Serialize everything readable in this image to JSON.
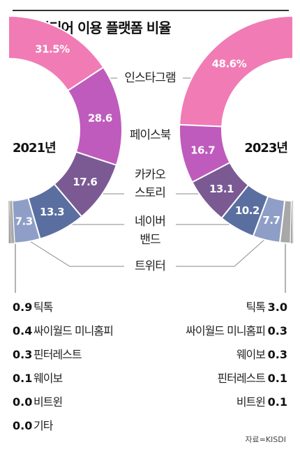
{
  "title": "소셜미디어 이용 플랫폼 비율",
  "source": "자료=KISDI",
  "chart_data": [
    {
      "type": "pie",
      "name": "2021년",
      "label": "2021년",
      "slices": [
        {
          "label": "인스타그램",
          "value": 31.5,
          "display": "31.5%",
          "color": "#f17bb4"
        },
        {
          "label": "페이스북",
          "value": 28.6,
          "display": "28.6",
          "color": "#bf5bbd"
        },
        {
          "label": "카카오 스토리",
          "value": 17.6,
          "display": "17.6",
          "color": "#7b5a94"
        },
        {
          "label": "네이버 밴드",
          "value": 13.3,
          "display": "13.3",
          "color": "#5a6fa0"
        },
        {
          "label": "트위터",
          "value": 7.3,
          "display": "7.3",
          "color": "#8f9ec6"
        },
        {
          "label": "틱톡",
          "value": 0.9,
          "display": "0.9",
          "color": "#a8a8a8"
        },
        {
          "label": "싸이월드 미니홈피",
          "value": 0.4,
          "display": "0.4",
          "color": "#8a8a8a"
        },
        {
          "label": "핀터레스트",
          "value": 0.3,
          "display": "0.3",
          "color": "#6e6e6e"
        },
        {
          "label": "웨이보",
          "value": 0.1,
          "display": "0.1",
          "color": "#555555"
        },
        {
          "label": "비트윈",
          "value": 0.0,
          "display": "0.0",
          "color": "#444444"
        },
        {
          "label": "기타",
          "value": 0.0,
          "display": "0.0",
          "color": "#333333"
        }
      ]
    },
    {
      "type": "pie",
      "name": "2023년",
      "label": "2023년",
      "slices": [
        {
          "label": "인스타그램",
          "value": 48.6,
          "display": "48.6%",
          "color": "#f17bb4"
        },
        {
          "label": "페이스북",
          "value": 16.7,
          "display": "16.7",
          "color": "#bf5bbd"
        },
        {
          "label": "카카오 스토리",
          "value": 13.1,
          "display": "13.1",
          "color": "#7b5a94"
        },
        {
          "label": "네이버 밴드",
          "value": 10.2,
          "display": "10.2",
          "color": "#5a6fa0"
        },
        {
          "label": "트위터",
          "value": 7.7,
          "display": "7.7",
          "color": "#8f9ec6"
        },
        {
          "label": "틱톡",
          "value": 3.0,
          "display": "3.0",
          "color": "#a8a8a8"
        },
        {
          "label": "싸이월드 미니홈피",
          "value": 0.3,
          "display": "0.3",
          "color": "#8a8a8a"
        },
        {
          "label": "웨이보",
          "value": 0.3,
          "display": "0.3",
          "color": "#6e6e6e"
        },
        {
          "label": "핀터레스트",
          "value": 0.1,
          "display": "0.1",
          "color": "#555555"
        },
        {
          "label": "비트윈",
          "value": 0.1,
          "display": "0.1",
          "color": "#444444"
        }
      ]
    }
  ],
  "center_labels": [
    {
      "text": "인스타그램"
    },
    {
      "text": "페이스북"
    },
    {
      "text": "카카오"
    },
    {
      "text": "스토리"
    },
    {
      "text": "네이버"
    },
    {
      "text": "밴드"
    },
    {
      "text": "트위터"
    }
  ]
}
